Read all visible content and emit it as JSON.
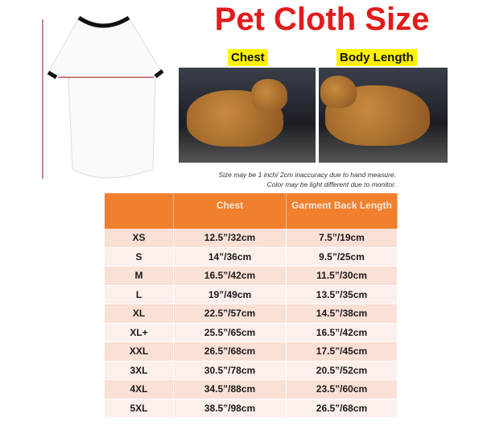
{
  "title": "Pet Cloth Size",
  "labels": {
    "chest": "Chest",
    "body_length": "Body Length"
  },
  "notes": [
    "Size may be 1 inch/ 2cm inaccuracy due to hand measure.",
    "Color may be light different due to monitor."
  ],
  "colors": {
    "title": "#e21b1b",
    "header": "#f07f2e",
    "label_bg": "#fff200",
    "arrow": "#b03a3a"
  },
  "table": {
    "headers": [
      "",
      "Chest",
      "Garment Back Length"
    ],
    "rows": [
      [
        "XS",
        "12.5”/32cm",
        "7.5”/19cm"
      ],
      [
        "S",
        "14”/36cm",
        "9.5”/25cm"
      ],
      [
        "M",
        "16.5”/42cm",
        "11.5”/30cm"
      ],
      [
        "L",
        "19”/49cm",
        "13.5”/35cm"
      ],
      [
        "XL",
        "22.5”/57cm",
        "14.5”/38cm"
      ],
      [
        "XL+",
        "25.5”/65cm",
        "16.5”/42cm"
      ],
      [
        "XXL",
        "26.5”/68cm",
        "17.5”/45cm"
      ],
      [
        "3XL",
        "30.5”/78cm",
        "20.5”/52cm"
      ],
      [
        "4XL",
        "34.5”/88cm",
        "23.5”/60cm"
      ],
      [
        "5XL",
        "38.5”/98cm",
        "26.5”/68cm"
      ]
    ]
  }
}
